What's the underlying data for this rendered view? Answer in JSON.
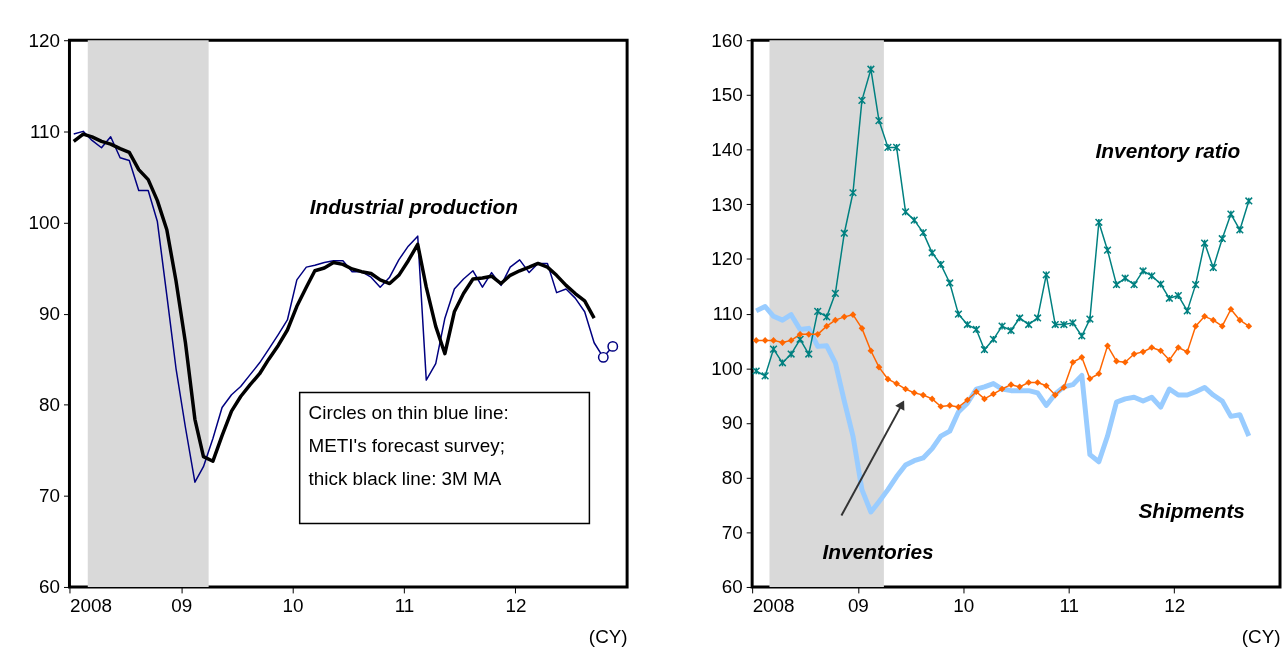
{
  "chart_data": [
    {
      "type": "line",
      "xlabel": "(CY)",
      "grid": false,
      "x": [
        "2008-01-15",
        "2008-02-15",
        "2008-03-15",
        "2008-04-15",
        "2008-05-15",
        "2008-06-15",
        "2008-07-15",
        "2008-08-15",
        "2008-09-15",
        "2008-10-15",
        "2008-11-15",
        "2008-12-15",
        "2009-01-15",
        "2009-02-15",
        "2009-03-15",
        "2009-04-15",
        "2009-05-15",
        "2009-06-15",
        "2009-07-15",
        "2009-08-15",
        "2009-09-15",
        "2009-10-15",
        "2009-11-15",
        "2009-12-15",
        "2010-01-15",
        "2010-02-15",
        "2010-03-15",
        "2010-04-15",
        "2010-05-15",
        "2010-06-15",
        "2010-07-15",
        "2010-08-15",
        "2010-09-15",
        "2010-10-15",
        "2010-11-15",
        "2010-12-15",
        "2011-01-15",
        "2011-02-15",
        "2011-03-15",
        "2011-04-15",
        "2011-05-15",
        "2011-06-15",
        "2011-07-15",
        "2011-08-15",
        "2011-09-15",
        "2011-10-15",
        "2011-11-15",
        "2011-12-15",
        "2012-01-15",
        "2012-02-15",
        "2012-03-15",
        "2012-04-15",
        "2012-05-15",
        "2012-06-15",
        "2012-07-15",
        "2012-08-15",
        "2012-09-15",
        "2012-10-15",
        "2012-11-15"
      ],
      "series": [
        {
          "name": "Industrial production",
          "color": "#000080",
          "marker": "none",
          "values": [
            109.7,
            110.0,
            109.0,
            108.2,
            109.4,
            107.1,
            106.8,
            103.5,
            103.5,
            100.1,
            92.0,
            84.0,
            77.5,
            71.5,
            73.2,
            76.3,
            79.7,
            81.1,
            82.0,
            83.3,
            84.6,
            86.1,
            87.7,
            89.3,
            93.7,
            95.1,
            95.3,
            95.6,
            95.8,
            95.8,
            94.6,
            94.6,
            94.0,
            92.9,
            94.0,
            95.9,
            97.4,
            98.5,
            82.7,
            84.5,
            89.5,
            92.7,
            93.8,
            94.7,
            92.9,
            94.5,
            93.1,
            95.1,
            95.9,
            94.5,
            95.5,
            95.5,
            92.3,
            92.7,
            91.7,
            90.2,
            86.8,
            85.2,
            86.4
          ]
        },
        {
          "color": "#000000",
          "marker": "none",
          "values": [
            108.9,
            109.7,
            109.4,
            108.9,
            108.6,
            108.1,
            107.7,
            105.8,
            104.7,
            102.4,
            99.2,
            93.6,
            86.8,
            78.4,
            74.3,
            73.8,
            76.6,
            79.3,
            80.9,
            82.2,
            83.4,
            85.0,
            86.5,
            88.2,
            90.8,
            92.9,
            94.7,
            95.0,
            95.6,
            95.4,
            94.9,
            94.6,
            94.4,
            93.7,
            93.3,
            94.2,
            95.8,
            97.6,
            92.9,
            88.6,
            85.6,
            90.2,
            92.2,
            93.8,
            93.9,
            94.1,
            93.3,
            94.2,
            94.7,
            95.1,
            95.5,
            95.1,
            94.2,
            93.1,
            92.2,
            91.4,
            89.5,
            null,
            null
          ]
        },
        {
          "type": "scatter",
          "color": "#000080",
          "marker": "circle",
          "x": [
            "2012-10-15",
            "2012-11-15"
          ],
          "values": [
            85.2,
            86.4
          ]
        }
      ],
      "xlim": [
        "2008-01-01",
        "2013-01-01"
      ],
      "xticks": [
        {
          "value": "2008-01-01",
          "label": "2008"
        },
        {
          "value": "2009-01-01",
          "label": "09"
        },
        {
          "value": "2010-01-01",
          "label": "10"
        },
        {
          "value": "2011-01-01",
          "label": "11"
        },
        {
          "value": "2012-01-01",
          "label": "12"
        }
      ],
      "ylim": [
        60,
        120
      ],
      "yticks": [
        60,
        70,
        80,
        90,
        100,
        110,
        120
      ],
      "bands": [
        {
          "axis": "x",
          "from": "2008-03-01",
          "to": "2009-04-01",
          "color": "#d9d9d9"
        }
      ],
      "annotations": [
        "Circles on thin blue line:\nMETI's forecast survey;\nthick black line: 3M MA"
      ]
    },
    {
      "type": "line",
      "xlabel": "(CY)",
      "grid": false,
      "x": [
        "2008-01-15",
        "2008-02-15",
        "2008-03-15",
        "2008-04-15",
        "2008-05-15",
        "2008-06-15",
        "2008-07-15",
        "2008-08-15",
        "2008-09-15",
        "2008-10-15",
        "2008-11-15",
        "2008-12-15",
        "2009-01-15",
        "2009-02-15",
        "2009-03-15",
        "2009-04-15",
        "2009-05-15",
        "2009-06-15",
        "2009-07-15",
        "2009-08-15",
        "2009-09-15",
        "2009-10-15",
        "2009-11-15",
        "2009-12-15",
        "2010-01-15",
        "2010-02-15",
        "2010-03-15",
        "2010-04-15",
        "2010-05-15",
        "2010-06-15",
        "2010-07-15",
        "2010-08-15",
        "2010-09-15",
        "2010-10-15",
        "2010-11-15",
        "2010-12-15",
        "2011-01-15",
        "2011-02-15",
        "2011-03-15",
        "2011-04-15",
        "2011-05-15",
        "2011-06-15",
        "2011-07-15",
        "2011-08-15",
        "2011-09-15",
        "2011-10-15",
        "2011-11-15",
        "2011-12-15",
        "2012-01-15",
        "2012-02-15",
        "2012-03-15",
        "2012-04-15",
        "2012-05-15",
        "2012-06-15",
        "2012-07-15",
        "2012-08-15",
        "2012-09-15"
      ],
      "series": [
        {
          "name": "Inventory ratio",
          "color": "#008080",
          "marker": "cross",
          "values": [
            99.5,
            98.6,
            103.5,
            101.0,
            102.6,
            105.3,
            102.6,
            110.4,
            109.4,
            113.7,
            124.7,
            132.1,
            149.0,
            154.7,
            145.3,
            140.4,
            140.4,
            128.6,
            127.1,
            124.8,
            121.1,
            119.0,
            115.6,
            109.9,
            108.0,
            107.1,
            103.4,
            105.3,
            107.7,
            106.9,
            109.2,
            108.0,
            109.2,
            117.1,
            108.0,
            108.0,
            108.3,
            105.9,
            109.0,
            126.7,
            121.6,
            115.3,
            116.5,
            115.3,
            117.8,
            116.9,
            115.4,
            112.8,
            113.3,
            110.5,
            115.3,
            122.9,
            118.4,
            123.7,
            128.2,
            125.3,
            130.6
          ]
        },
        {
          "name": "Inventories",
          "color": "#ff6600",
          "marker": "diamond",
          "values": [
            105.1,
            105.1,
            105.1,
            104.7,
            105.1,
            106.2,
            106.2,
            106.2,
            107.7,
            108.8,
            109.4,
            109.8,
            107.3,
            103.2,
            100.2,
            98.0,
            97.2,
            96.2,
            95.5,
            95.1,
            94.4,
            93.0,
            93.2,
            92.9,
            94.2,
            95.7,
            94.4,
            95.3,
            96.2,
            97.0,
            96.6,
            97.4,
            97.4,
            96.8,
            95.1,
            96.5,
            101.1,
            102.0,
            98.1,
            99.0,
            104.1,
            101.3,
            101.1,
            102.6,
            103.0,
            103.8,
            103.2,
            101.5,
            103.8,
            103.0,
            107.7,
            109.5,
            108.8,
            107.7,
            110.8,
            108.8,
            107.7
          ]
        },
        {
          "name": "Shipments",
          "color": "#99ccff",
          "marker": "none",
          "values": [
            110.5,
            111.3,
            109.5,
            108.8,
            109.8,
            107.1,
            107.3,
            104.0,
            104.1,
            101.0,
            94.0,
            87.6,
            77.8,
            73.7,
            75.6,
            77.8,
            80.2,
            82.3,
            83.1,
            83.6,
            85.3,
            87.6,
            88.5,
            92.0,
            93.6,
            96.2,
            96.6,
            97.2,
            96.2,
            95.9,
            95.9,
            95.9,
            95.5,
            93.2,
            95.3,
            96.6,
            97.0,
            98.7,
            84.2,
            82.9,
            87.6,
            93.8,
            94.4,
            94.7,
            94.0,
            94.7,
            92.9,
            96.2,
            95.1,
            95.1,
            95.7,
            96.5,
            95.1,
            94.0,
            91.2,
            91.5,
            87.6
          ]
        }
      ],
      "xlim": [
        "2008-01-01",
        "2013-01-01"
      ],
      "xticks": [
        {
          "value": "2008-01-01",
          "label": "2008"
        },
        {
          "value": "2009-01-01",
          "label": "09"
        },
        {
          "value": "2010-01-01",
          "label": "10"
        },
        {
          "value": "2011-01-01",
          "label": "11"
        },
        {
          "value": "2012-01-01",
          "label": "12"
        }
      ],
      "ylim": [
        60,
        160
      ],
      "yticks": [
        60,
        70,
        80,
        90,
        100,
        110,
        120,
        130,
        140,
        150,
        160
      ],
      "bands": [
        {
          "axis": "x",
          "from": "2008-03-01",
          "to": "2009-04-01",
          "color": "#d9d9d9"
        }
      ]
    }
  ]
}
